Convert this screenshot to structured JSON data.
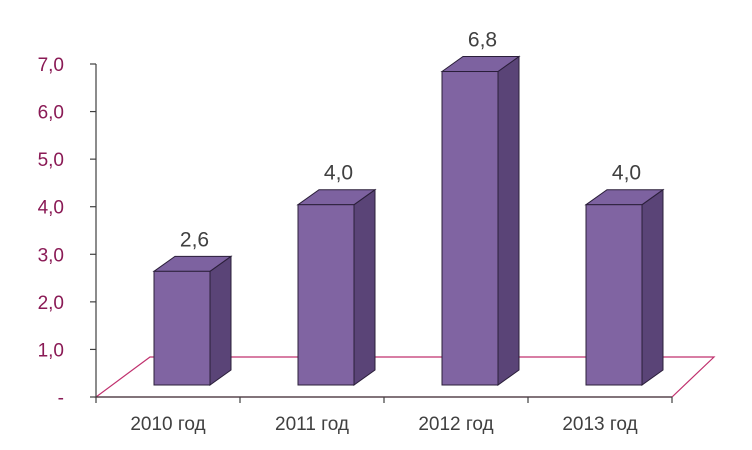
{
  "colors": {
    "bar_front": "#8064a2",
    "bar_side": "#5a4477",
    "bar_top": "#7d62a0",
    "bar_edge": "#2b1f3a",
    "floor_line": "#c0316e",
    "axis_line": "#404040",
    "tick_text": "#8a1a55",
    "cat_text": "#404040",
    "data_label_text": "#404040"
  },
  "chart_data": {
    "type": "bar",
    "style": "3d-column",
    "categories": [
      "2010 год",
      "2011 год",
      "2012 год",
      "2013 год"
    ],
    "values": [
      2.6,
      4.0,
      6.8,
      4.0
    ],
    "data_labels": [
      "2,6",
      "4,0",
      "6,8",
      "4,0"
    ],
    "ylim": [
      0,
      7
    ],
    "yticks": [
      0,
      1,
      2,
      3,
      4,
      5,
      6,
      7
    ],
    "ytick_labels": [
      "-",
      "1,0",
      "2,0",
      "3,0",
      "4,0",
      "5,0",
      "6,0",
      "7,0"
    ],
    "title": "",
    "xlabel": "",
    "ylabel": "",
    "legend": "none",
    "grid": false
  }
}
